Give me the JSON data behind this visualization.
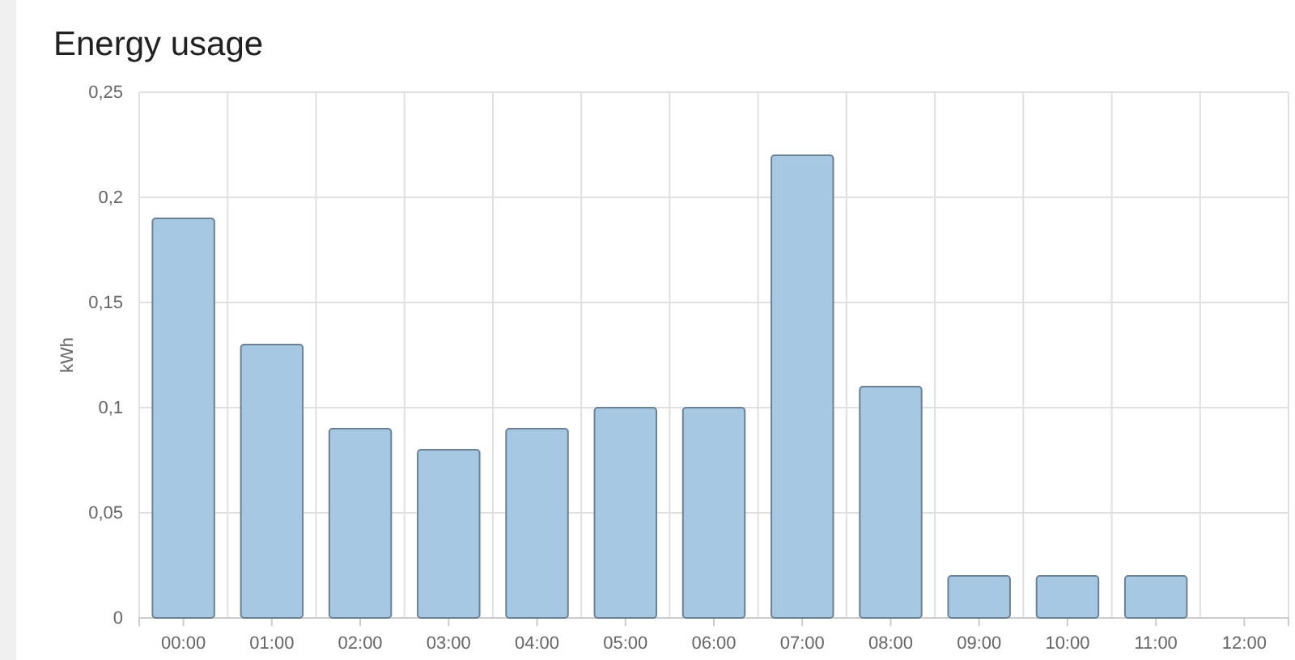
{
  "chart_data": {
    "type": "bar",
    "title": "Energy usage",
    "ylabel": "kWh",
    "categories": [
      "00:00",
      "01:00",
      "02:00",
      "03:00",
      "04:00",
      "05:00",
      "06:00",
      "07:00",
      "08:00",
      "09:00",
      "10:00",
      "11:00",
      "12:00"
    ],
    "series": [
      {
        "color": "#a6c8e3",
        "values": [
          0.19,
          0.13,
          0.09,
          0.08,
          0.09,
          0.1,
          0.1,
          0.22,
          0.11,
          0.02,
          0.02,
          0.02,
          null
        ]
      }
    ],
    "ylim": [
      0,
      0.25
    ],
    "yticks": [
      {
        "value": 0,
        "label": "0"
      },
      {
        "value": 0.05,
        "label": "0,05"
      },
      {
        "value": 0.1,
        "label": "0,1"
      },
      {
        "value": 0.15,
        "label": "0,15"
      },
      {
        "value": 0.2,
        "label": "0,2"
      },
      {
        "value": 0.25,
        "label": "0,25"
      }
    ],
    "grid": true
  }
}
